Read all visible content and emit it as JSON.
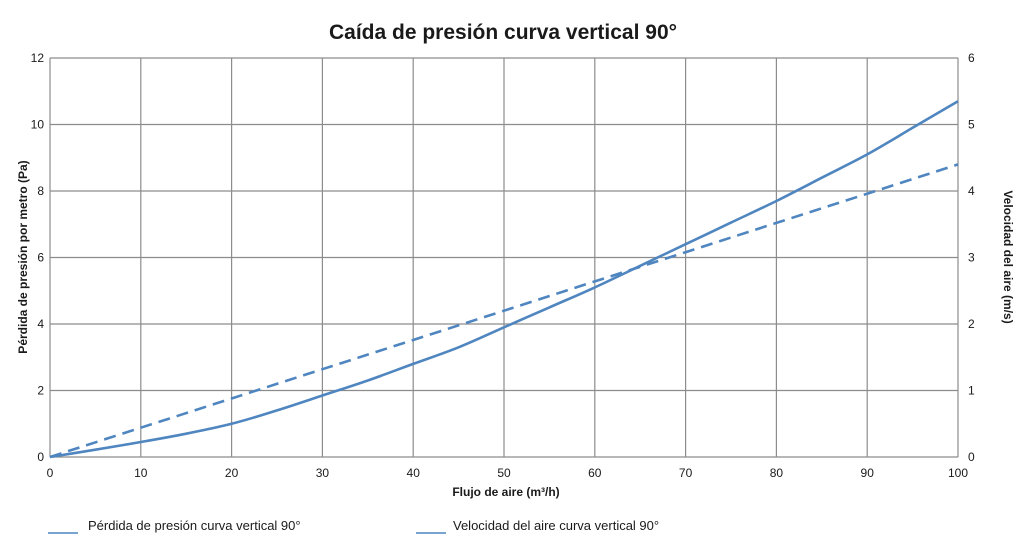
{
  "chart_data": {
    "type": "line",
    "title": "Caída de presión curva vertical 90°",
    "xlabel": "Flujo de aire (m³/h)",
    "ylabel": "Pérdida de presión por metro (Pa)",
    "y2label": "Velocidad del aire (m/s)",
    "xlim": [
      0,
      100
    ],
    "ylim": [
      0,
      12
    ],
    "y2lim": [
      0,
      6
    ],
    "x_ticks": [
      "0",
      "10",
      "20",
      "30",
      "40",
      "50",
      "60",
      "70",
      "80",
      "90",
      "100"
    ],
    "y_ticks": [
      "0",
      "2",
      "4",
      "6",
      "8",
      "10",
      "12"
    ],
    "y2_ticks": [
      "0",
      "1",
      "2",
      "3",
      "4",
      "5",
      "6"
    ],
    "grid": true,
    "legend_position": "bottom",
    "series": [
      {
        "name": "Pérdida de presión curva vertical 90°",
        "axis": "left",
        "style": "solid",
        "color": "#4f86c0",
        "x": [
          0,
          5,
          10,
          15,
          20,
          25,
          30,
          35,
          40,
          45,
          50,
          55,
          60,
          65,
          70,
          75,
          80,
          85,
          90,
          95,
          100
        ],
        "y": [
          0,
          0.22,
          0.45,
          0.7,
          1.0,
          1.4,
          1.85,
          2.3,
          2.8,
          3.3,
          3.9,
          4.5,
          5.1,
          5.75,
          6.4,
          7.05,
          7.7,
          8.4,
          9.1,
          9.9,
          10.7
        ]
      },
      {
        "name": "Velocidad del aire curva vertical 90°",
        "axis": "right",
        "style": "dashed",
        "color": "#4f86c0",
        "x": [
          0,
          10,
          20,
          30,
          40,
          50,
          60,
          70,
          80,
          90,
          100
        ],
        "y": [
          0,
          0.44,
          0.88,
          1.32,
          1.76,
          2.2,
          2.64,
          3.08,
          3.52,
          3.96,
          4.4
        ]
      }
    ]
  }
}
